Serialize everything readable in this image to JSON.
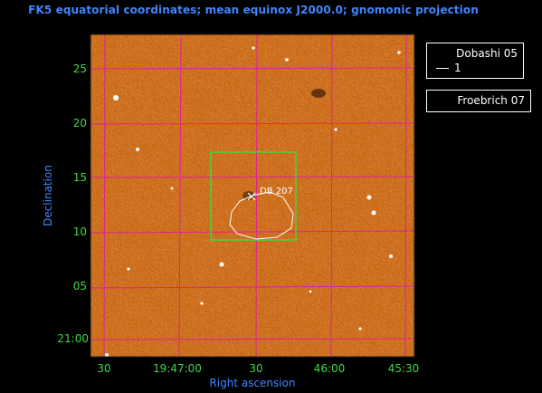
{
  "title": "FK5 equatorial coordinates; mean equinox J2000.0; gnomonic projection",
  "axes": {
    "xlabel": "Right ascension",
    "ylabel": "Declination",
    "x_ticks": [
      "30",
      "19:47:00",
      "30",
      "46:00",
      "45:30"
    ],
    "y_ticks": [
      "25",
      "20",
      "15",
      "10",
      "05",
      "21:00"
    ]
  },
  "overlay": {
    "object_label": "DB 207"
  },
  "legends": {
    "dobashi": {
      "title": "Dobashi 05",
      "entry": "1"
    },
    "froebrich": {
      "title": "Froebrich 07"
    }
  },
  "colors": {
    "background": "#000000",
    "sky": "#c9650f",
    "grid": "#e0209a",
    "tick_text": "#41d641",
    "axis_text": "#3f86ff",
    "box": "#41d641",
    "contour": "#ffffff"
  }
}
